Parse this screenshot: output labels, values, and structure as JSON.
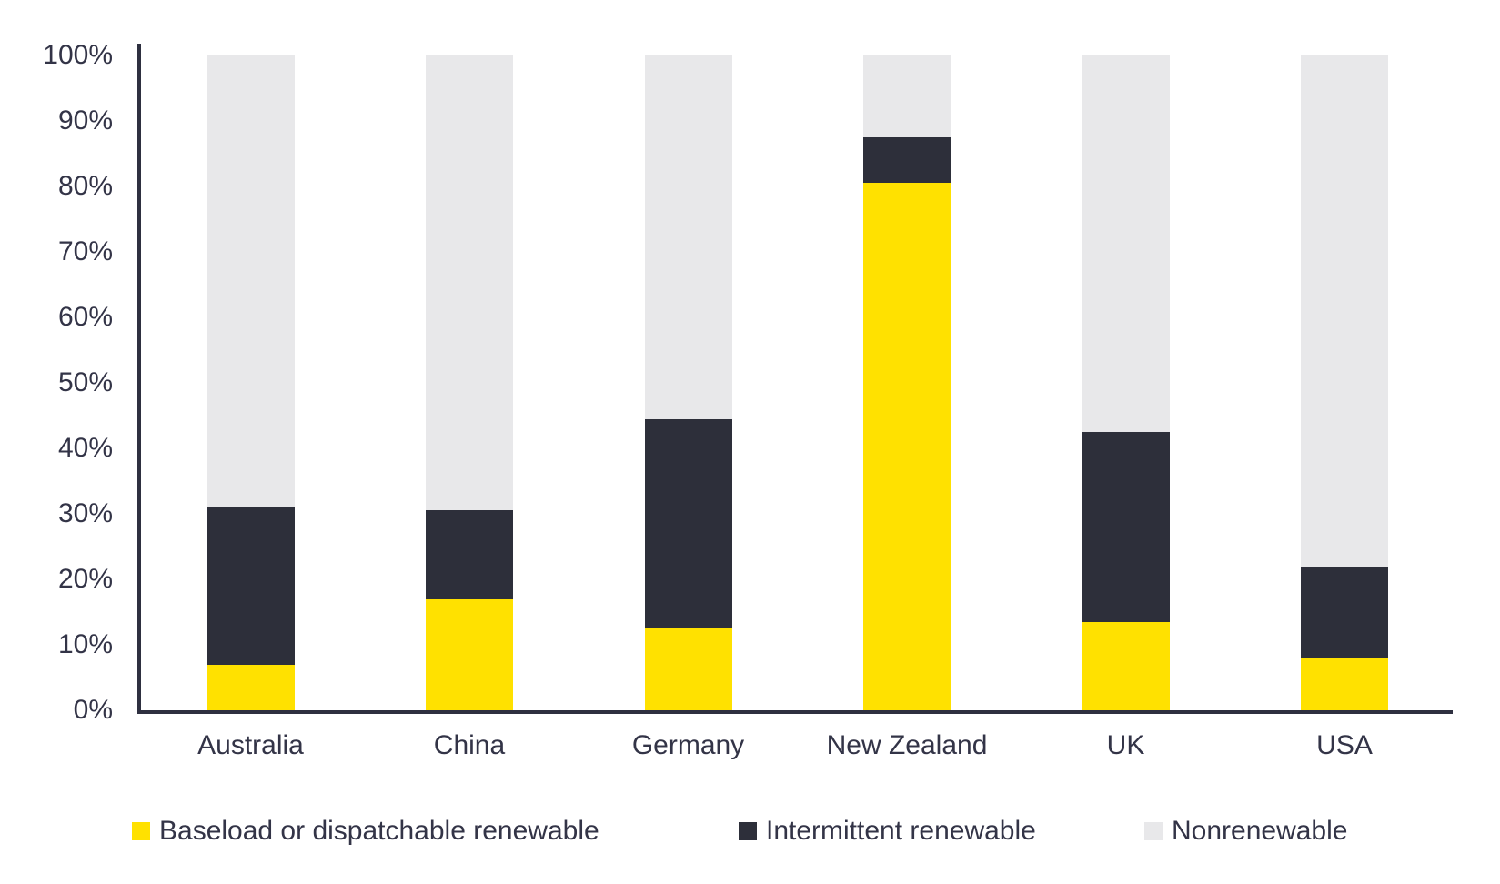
{
  "chart_data": {
    "type": "bar",
    "variant": "stacked-column",
    "title": "",
    "categories": [
      "Australia",
      "China",
      "Germany",
      "New Zealand",
      "UK",
      "USA"
    ],
    "series": [
      {
        "name": "Baseload or dispatchable renewable",
        "color": "#FFE100",
        "values": [
          7,
          17,
          12.5,
          80.5,
          13.5,
          8
        ]
      },
      {
        "name": "Intermittent renewable",
        "color": "#2D2F3A",
        "values": [
          24,
          13.5,
          32,
          7,
          29,
          14
        ]
      },
      {
        "name": "Nonrenewable",
        "color": "#E8E8EA",
        "values": [
          69,
          69.5,
          55.5,
          12.5,
          57.5,
          78
        ]
      }
    ],
    "xlabel": "",
    "ylabel": "",
    "ylim": [
      0,
      100
    ],
    "ytick_labels": [
      "0%",
      "10%",
      "20%",
      "30%",
      "40%",
      "50%",
      "60%",
      "70%",
      "80%",
      "90%",
      "100%"
    ],
    "grid": false,
    "legend_position": "bottom",
    "axis_color": "#2E3040",
    "text_color": "#333447",
    "background_color": "#FFFFFF"
  }
}
